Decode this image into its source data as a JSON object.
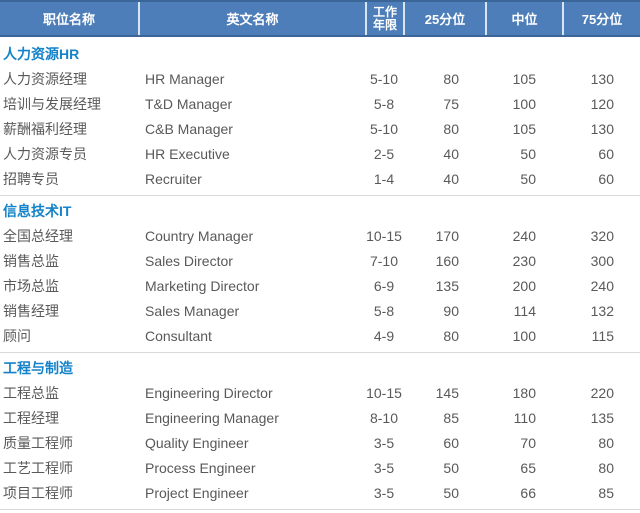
{
  "colors": {
    "header_bg": "#4D7EB9",
    "header_border": "#3B6597",
    "header_divider": "#D9E4F1",
    "section_title": "#1583C9",
    "body_text": "#595959",
    "divider": "#D9D9D9"
  },
  "table": {
    "columns": [
      {
        "key": "position",
        "label": "职位名称"
      },
      {
        "key": "english",
        "label": "英文名称"
      },
      {
        "key": "years",
        "label": "工作年限"
      },
      {
        "key": "p25",
        "label": "25分位"
      },
      {
        "key": "median",
        "label": "中位"
      },
      {
        "key": "p75",
        "label": "75分位"
      }
    ],
    "sections": [
      {
        "title": "人力资源HR",
        "rows": [
          [
            "人力资源经理",
            "HR Manager",
            "5-10",
            "80",
            "105",
            "130"
          ],
          [
            "培训与发展经理",
            "T&D Manager",
            "5-8",
            "75",
            "100",
            "120"
          ],
          [
            "薪酬福利经理",
            "C&B Manager",
            "5-10",
            "80",
            "105",
            "130"
          ],
          [
            "人力资源专员",
            "HR Executive",
            "2-5",
            "40",
            "50",
            "60"
          ],
          [
            "招聘专员",
            "Recruiter",
            "1-4",
            "40",
            "50",
            "60"
          ]
        ]
      },
      {
        "title": "信息技术IT",
        "rows": [
          [
            "全国总经理",
            "Country Manager",
            "10-15",
            "170",
            "240",
            "320"
          ],
          [
            "销售总监",
            "Sales Director",
            "7-10",
            "160",
            "230",
            "300"
          ],
          [
            "市场总监",
            "Marketing Director",
            "6-9",
            "135",
            "200",
            "240"
          ],
          [
            "销售经理",
            "Sales Manager",
            "5-8",
            "90",
            "114",
            "132"
          ],
          [
            "顾问",
            "Consultant",
            "4-9",
            "80",
            "100",
            "115"
          ]
        ]
      },
      {
        "title": "工程与制造",
        "rows": [
          [
            "工程总监",
            "Engineering Director",
            "10-15",
            "145",
            "180",
            "220"
          ],
          [
            "工程经理",
            "Engineering Manager",
            "8-10",
            "85",
            "110",
            "135"
          ],
          [
            "质量工程师",
            "Quality Engineer",
            "3-5",
            "60",
            "70",
            "80"
          ],
          [
            "工艺工程师",
            "Process Engineer",
            "3-5",
            "50",
            "65",
            "80"
          ],
          [
            "项目工程师",
            "Project Engineer",
            "3-5",
            "50",
            "66",
            "85"
          ]
        ]
      }
    ]
  },
  "chart_data": {
    "type": "table",
    "title": "",
    "columns": [
      "职位名称",
      "英文名称",
      "工作年限",
      "25分位",
      "中位",
      "75分位"
    ],
    "groups": [
      {
        "group": "人力资源HR",
        "rows": [
          [
            "人力资源经理",
            "HR Manager",
            "5-10",
            80,
            105,
            130
          ],
          [
            "培训与发展经理",
            "T&D Manager",
            "5-8",
            75,
            100,
            120
          ],
          [
            "薪酬福利经理",
            "C&B Manager",
            "5-10",
            80,
            105,
            130
          ],
          [
            "人力资源专员",
            "HR Executive",
            "2-5",
            40,
            50,
            60
          ],
          [
            "招聘专员",
            "Recruiter",
            "1-4",
            40,
            50,
            60
          ]
        ]
      },
      {
        "group": "信息技术IT",
        "rows": [
          [
            "全国总经理",
            "Country Manager",
            "10-15",
            170,
            240,
            320
          ],
          [
            "销售总监",
            "Sales Director",
            "7-10",
            160,
            230,
            300
          ],
          [
            "市场总监",
            "Marketing Director",
            "6-9",
            135,
            200,
            240
          ],
          [
            "销售经理",
            "Sales Manager",
            "5-8",
            90,
            114,
            132
          ],
          [
            "顾问",
            "Consultant",
            "4-9",
            80,
            100,
            115
          ]
        ]
      },
      {
        "group": "工程与制造",
        "rows": [
          [
            "工程总监",
            "Engineering Director",
            "10-15",
            145,
            180,
            220
          ],
          [
            "工程经理",
            "Engineering Manager",
            "8-10",
            85,
            110,
            135
          ],
          [
            "质量工程师",
            "Quality Engineer",
            "3-5",
            60,
            70,
            80
          ],
          [
            "工艺工程师",
            "Process Engineer",
            "3-5",
            50,
            65,
            80
          ],
          [
            "项目工程师",
            "Project Engineer",
            "3-5",
            50,
            66,
            85
          ]
        ]
      }
    ]
  }
}
